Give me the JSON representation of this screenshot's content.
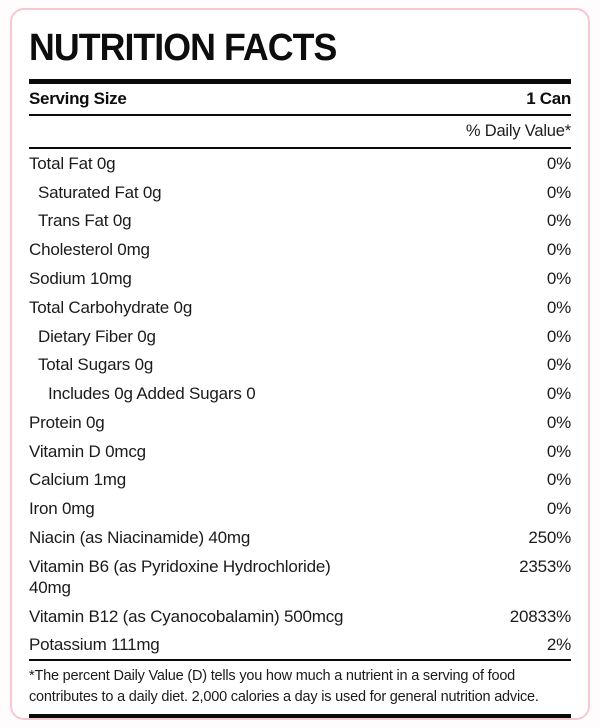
{
  "label": {
    "title": "NUTRITION FACTS",
    "serving_size_label": "Serving Size",
    "serving_size_value": "1 Can",
    "daily_value_header": "% Daily Value*",
    "rows": [
      {
        "name": "Total Fat 0g",
        "value": "0%",
        "indent": 0
      },
      {
        "name": "Saturated Fat 0g",
        "value": "0%",
        "indent": 1
      },
      {
        "name": "Trans Fat 0g",
        "value": "0%",
        "indent": 1
      },
      {
        "name": "Cholesterol 0mg",
        "value": "0%",
        "indent": 0
      },
      {
        "name": "Sodium 10mg",
        "value": "0%",
        "indent": 0
      },
      {
        "name": "Total Carbohydrate 0g",
        "value": "0%",
        "indent": 0
      },
      {
        "name": "Dietary Fiber 0g",
        "value": "0%",
        "indent": 1
      },
      {
        "name": "Total Sugars 0g",
        "value": "0%",
        "indent": 1
      },
      {
        "name": "Includes 0g Added Sugars 0",
        "value": "0%",
        "indent": 2
      },
      {
        "name": "Protein 0g",
        "value": "0%",
        "indent": 0
      },
      {
        "name": "Vitamin D 0mcg",
        "value": "0%",
        "indent": 0
      },
      {
        "name": "Calcium 1mg",
        "value": "0%",
        "indent": 0
      },
      {
        "name": "Iron 0mg",
        "value": "0%",
        "indent": 0
      },
      {
        "name": "Niacin (as Niacinamide) 40mg",
        "value": "250%",
        "indent": 0
      },
      {
        "name": "Vitamin B6 (as Pyridoxine Hydrochloride) 40mg",
        "value": "2353%",
        "indent": 0
      },
      {
        "name": "Vitamin B12 (as Cyanocobalamin) 500mcg",
        "value": "20833%",
        "indent": 0
      },
      {
        "name": "Potassium 111mg",
        "value": "2%",
        "indent": 0
      }
    ],
    "footnote": "*The percent Daily Value (D) tells you how much a nutrient in a serving of food contributes to a daily diet. 2,000 calories a day is used for general nutrition advice.",
    "colors": {
      "border_pink": "#f6c9d1",
      "rule_black": "#0b0b0b",
      "text": "#1b1b1b",
      "card_background": "#ffffff"
    }
  }
}
